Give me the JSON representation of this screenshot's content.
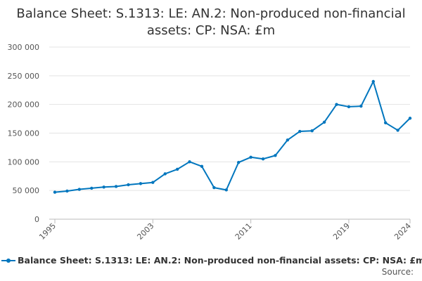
{
  "chart_data": {
    "type": "line",
    "title": "Balance Sheet: S.1313: LE: AN.2: Non-produced non-financial assets: CP: NSA: £m",
    "xlabel": "",
    "ylabel": "",
    "ylim": [
      0,
      300000
    ],
    "yticks": [
      0,
      50000,
      100000,
      150000,
      200000,
      250000,
      300000
    ],
    "ytick_labels": [
      "0",
      "50 000",
      "100 000",
      "150 000",
      "200 000",
      "250 000",
      "300 000"
    ],
    "xlim": [
      1995,
      2024
    ],
    "xticks": [
      1995,
      2003,
      2011,
      2019,
      2024
    ],
    "xtick_labels": [
      "1995",
      "2003",
      "2011",
      "2019",
      "2024"
    ],
    "grid": true,
    "legend_position": "bottom",
    "x": [
      1995,
      1996,
      1997,
      1998,
      1999,
      2000,
      2001,
      2002,
      2003,
      2004,
      2005,
      2006,
      2007,
      2008,
      2009,
      2010,
      2011,
      2012,
      2013,
      2014,
      2015,
      2016,
      2017,
      2018,
      2019,
      2020,
      2021,
      2022,
      2023,
      2024
    ],
    "series": [
      {
        "name": "Balance Sheet: S.1313: LE: AN.2: Non-produced non-financial assets: CP: NSA: £m",
        "color": "#0076BE",
        "values": [
          47000,
          49000,
          52000,
          54000,
          56000,
          57000,
          60000,
          62000,
          64000,
          79000,
          87000,
          100000,
          92000,
          55000,
          51000,
          99000,
          108000,
          105000,
          111000,
          138000,
          153000,
          154000,
          169000,
          200000,
          196000,
          197000,
          240000,
          168000,
          155000,
          176000
        ]
      }
    ]
  },
  "source_label": "Source:"
}
